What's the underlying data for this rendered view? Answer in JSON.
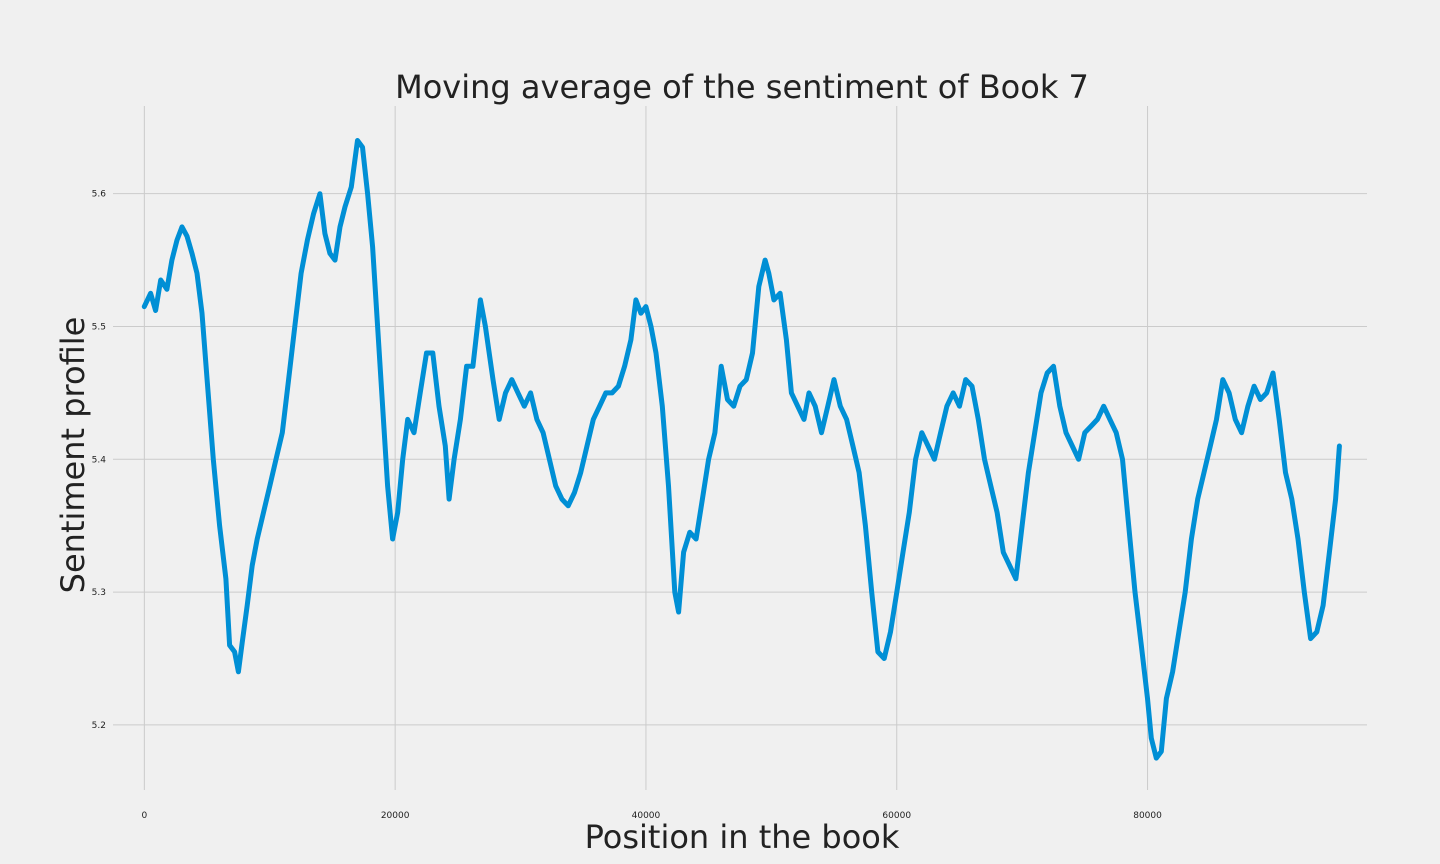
{
  "chart_data": {
    "type": "line",
    "title": "Moving average of the sentiment of Book 7",
    "xlabel": "Position in the book",
    "ylabel": "Sentiment profile",
    "xlim": [
      -2500,
      97500
    ],
    "ylim": [
      5.151,
      5.666
    ],
    "xticks": [
      0,
      20000,
      40000,
      60000,
      80000
    ],
    "yticks": [
      5.2,
      5.3,
      5.4,
      5.5,
      5.6
    ],
    "grid": true,
    "colors": {
      "line": "#008fd5",
      "background": "#f0f0f0",
      "grid": "#cbcbcb"
    },
    "series": [
      {
        "points": [
          [
            0,
            5.515
          ],
          [
            500,
            5.525
          ],
          [
            900,
            5.512
          ],
          [
            1300,
            5.535
          ],
          [
            1800,
            5.528
          ],
          [
            2200,
            5.55
          ],
          [
            2600,
            5.565
          ],
          [
            3000,
            5.575
          ],
          [
            3400,
            5.568
          ],
          [
            3800,
            5.555
          ],
          [
            4200,
            5.54
          ],
          [
            4600,
            5.51
          ],
          [
            5000,
            5.46
          ],
          [
            5500,
            5.4
          ],
          [
            6000,
            5.35
          ],
          [
            6500,
            5.31
          ],
          [
            6800,
            5.26
          ],
          [
            7200,
            5.255
          ],
          [
            7500,
            5.24
          ],
          [
            7800,
            5.262
          ],
          [
            8200,
            5.29
          ],
          [
            8600,
            5.32
          ],
          [
            9000,
            5.34
          ],
          [
            9500,
            5.36
          ],
          [
            10000,
            5.38
          ],
          [
            10500,
            5.4
          ],
          [
            11000,
            5.42
          ],
          [
            11500,
            5.46
          ],
          [
            12000,
            5.5
          ],
          [
            12500,
            5.54
          ],
          [
            13000,
            5.565
          ],
          [
            13500,
            5.585
          ],
          [
            14000,
            5.6
          ],
          [
            14400,
            5.57
          ],
          [
            14800,
            5.555
          ],
          [
            15200,
            5.55
          ],
          [
            15600,
            5.575
          ],
          [
            16000,
            5.59
          ],
          [
            16500,
            5.605
          ],
          [
            17000,
            5.64
          ],
          [
            17400,
            5.635
          ],
          [
            17800,
            5.6
          ],
          [
            18200,
            5.56
          ],
          [
            18600,
            5.5
          ],
          [
            19000,
            5.44
          ],
          [
            19400,
            5.38
          ],
          [
            19800,
            5.34
          ],
          [
            20200,
            5.36
          ],
          [
            20600,
            5.4
          ],
          [
            21000,
            5.43
          ],
          [
            21500,
            5.42
          ],
          [
            22000,
            5.45
          ],
          [
            22500,
            5.48
          ],
          [
            23000,
            5.48
          ],
          [
            23500,
            5.44
          ],
          [
            24000,
            5.41
          ],
          [
            24300,
            5.37
          ],
          [
            24700,
            5.4
          ],
          [
            25200,
            5.43
          ],
          [
            25700,
            5.47
          ],
          [
            26200,
            5.47
          ],
          [
            26800,
            5.52
          ],
          [
            27200,
            5.5
          ],
          [
            27800,
            5.46
          ],
          [
            28300,
            5.43
          ],
          [
            28800,
            5.45
          ],
          [
            29300,
            5.46
          ],
          [
            29800,
            5.45
          ],
          [
            30300,
            5.44
          ],
          [
            30800,
            5.45
          ],
          [
            31300,
            5.43
          ],
          [
            31800,
            5.42
          ],
          [
            32300,
            5.4
          ],
          [
            32800,
            5.38
          ],
          [
            33300,
            5.37
          ],
          [
            33800,
            5.365
          ],
          [
            34300,
            5.375
          ],
          [
            34800,
            5.39
          ],
          [
            35300,
            5.41
          ],
          [
            35800,
            5.43
          ],
          [
            36300,
            5.44
          ],
          [
            36800,
            5.45
          ],
          [
            37300,
            5.45
          ],
          [
            37800,
            5.455
          ],
          [
            38300,
            5.47
          ],
          [
            38800,
            5.49
          ],
          [
            39200,
            5.52
          ],
          [
            39600,
            5.51
          ],
          [
            40000,
            5.515
          ],
          [
            40400,
            5.5
          ],
          [
            40800,
            5.48
          ],
          [
            41300,
            5.44
          ],
          [
            41800,
            5.38
          ],
          [
            42300,
            5.3
          ],
          [
            42600,
            5.285
          ],
          [
            43000,
            5.33
          ],
          [
            43500,
            5.345
          ],
          [
            44000,
            5.34
          ],
          [
            44500,
            5.37
          ],
          [
            45000,
            5.4
          ],
          [
            45500,
            5.42
          ],
          [
            46000,
            5.47
          ],
          [
            46500,
            5.445
          ],
          [
            47000,
            5.44
          ],
          [
            47500,
            5.455
          ],
          [
            48000,
            5.46
          ],
          [
            48500,
            5.48
          ],
          [
            49000,
            5.53
          ],
          [
            49500,
            5.55
          ],
          [
            49800,
            5.54
          ],
          [
            50200,
            5.52
          ],
          [
            50700,
            5.525
          ],
          [
            51200,
            5.49
          ],
          [
            51600,
            5.45
          ],
          [
            52100,
            5.44
          ],
          [
            52600,
            5.43
          ],
          [
            53000,
            5.45
          ],
          [
            53500,
            5.44
          ],
          [
            54000,
            5.42
          ],
          [
            54500,
            5.44
          ],
          [
            55000,
            5.46
          ],
          [
            55500,
            5.44
          ],
          [
            56000,
            5.43
          ],
          [
            56500,
            5.41
          ],
          [
            57000,
            5.39
          ],
          [
            57500,
            5.35
          ],
          [
            58000,
            5.3
          ],
          [
            58500,
            5.255
          ],
          [
            59000,
            5.25
          ],
          [
            59500,
            5.27
          ],
          [
            60000,
            5.3
          ],
          [
            60500,
            5.33
          ],
          [
            61000,
            5.36
          ],
          [
            61500,
            5.4
          ],
          [
            62000,
            5.42
          ],
          [
            62500,
            5.41
          ],
          [
            63000,
            5.4
          ],
          [
            63500,
            5.42
          ],
          [
            64000,
            5.44
          ],
          [
            64500,
            5.45
          ],
          [
            65000,
            5.44
          ],
          [
            65500,
            5.46
          ],
          [
            66000,
            5.455
          ],
          [
            66500,
            5.43
          ],
          [
            67000,
            5.4
          ],
          [
            67500,
            5.38
          ],
          [
            68000,
            5.36
          ],
          [
            68500,
            5.33
          ],
          [
            69000,
            5.32
          ],
          [
            69500,
            5.31
          ],
          [
            70000,
            5.35
          ],
          [
            70500,
            5.39
          ],
          [
            71000,
            5.42
          ],
          [
            71500,
            5.45
          ],
          [
            72000,
            5.465
          ],
          [
            72500,
            5.47
          ],
          [
            73000,
            5.44
          ],
          [
            73500,
            5.42
          ],
          [
            74000,
            5.41
          ],
          [
            74500,
            5.4
          ],
          [
            75000,
            5.42
          ],
          [
            75500,
            5.425
          ],
          [
            76000,
            5.43
          ],
          [
            76500,
            5.44
          ],
          [
            77000,
            5.43
          ],
          [
            77500,
            5.42
          ],
          [
            78000,
            5.4
          ],
          [
            78500,
            5.35
          ],
          [
            79000,
            5.3
          ],
          [
            79500,
            5.26
          ],
          [
            80000,
            5.22
          ],
          [
            80300,
            5.19
          ],
          [
            80700,
            5.175
          ],
          [
            81100,
            5.18
          ],
          [
            81500,
            5.22
          ],
          [
            82000,
            5.24
          ],
          [
            82500,
            5.27
          ],
          [
            83000,
            5.3
          ],
          [
            83500,
            5.34
          ],
          [
            84000,
            5.37
          ],
          [
            84500,
            5.39
          ],
          [
            85000,
            5.41
          ],
          [
            85500,
            5.43
          ],
          [
            86000,
            5.46
          ],
          [
            86500,
            5.45
          ],
          [
            87000,
            5.43
          ],
          [
            87500,
            5.42
          ],
          [
            88000,
            5.44
          ],
          [
            88500,
            5.455
          ],
          [
            89000,
            5.445
          ],
          [
            89500,
            5.45
          ],
          [
            90000,
            5.465
          ],
          [
            90500,
            5.43
          ],
          [
            91000,
            5.39
          ],
          [
            91500,
            5.37
          ],
          [
            92000,
            5.34
          ],
          [
            92500,
            5.3
          ],
          [
            93000,
            5.265
          ],
          [
            93500,
            5.27
          ],
          [
            94000,
            5.29
          ],
          [
            94500,
            5.33
          ],
          [
            95000,
            5.37
          ],
          [
            95300,
            5.41
          ]
        ]
      }
    ]
  }
}
